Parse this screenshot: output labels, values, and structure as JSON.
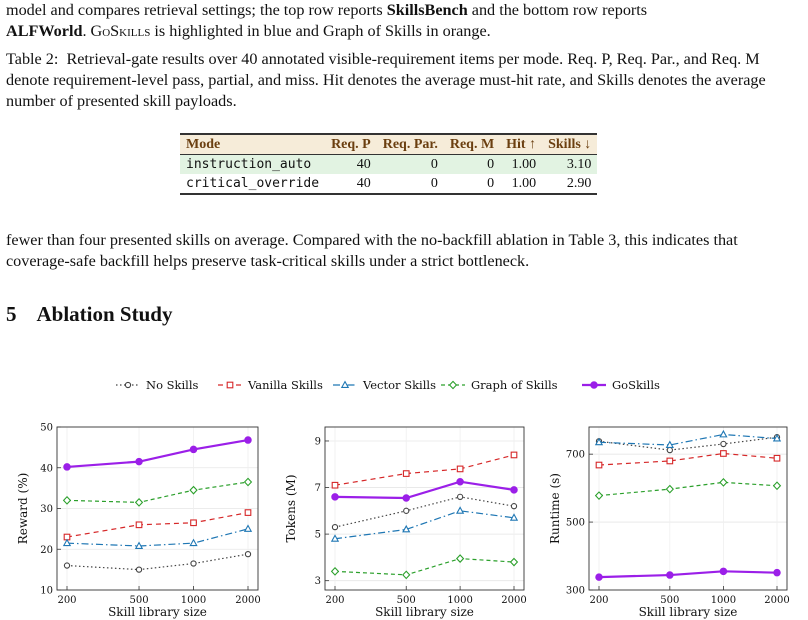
{
  "top_paragraph": {
    "line1": "model and compares retrieval settings; the top row reports ",
    "line1_bold": "SkillsBench",
    "line1_end": " and the bottom row reports",
    "line2_bold": "ALFWorld",
    "line2_mid": ". ",
    "line2_sc": "GoSkills",
    "line2_end": " is highlighted in blue and Graph of Skills in orange."
  },
  "caption": {
    "label": "Table 2:",
    "text": "Retrieval-gate results over 40 annotated visible-requirement items per mode. Req. P, Req. Par., and Req. M denote requirement-level pass, partial, and miss. Hit denotes the average must-hit rate, and Skills denotes the average number of presented skill payloads."
  },
  "table": {
    "headers": [
      "Mode",
      "Req. P",
      "Req. Par.",
      "Req. M",
      "Hit ↑",
      "Skills ↓"
    ],
    "rows": [
      [
        "instruction_auto",
        "40",
        "0",
        "0",
        "1.00",
        "3.10"
      ],
      [
        "critical_override",
        "40",
        "0",
        "0",
        "1.00",
        "2.90"
      ]
    ]
  },
  "body_paragraph": "fewer than four presented skills on average. Compared with the no-backfill ablation in Table 3, this indicates that coverage-safe backfill helps preserve task-critical skills under a strict bottleneck.",
  "section": {
    "number": "5",
    "title": "Ablation Study"
  },
  "colors": {
    "no_skills": "#444444",
    "vanilla": "#d62728",
    "vector": "#1f77b4",
    "graph": "#2ca02c",
    "goskills": "#9b1fe8"
  },
  "chart_data": [
    {
      "type": "line",
      "xlabel": "Skill library size",
      "ylabel": "Reward (%)",
      "x": [
        200,
        500,
        1000,
        2000
      ],
      "ylim": [
        10,
        50
      ],
      "yticks": [
        10,
        20,
        30,
        40,
        50
      ],
      "legend": "top-center",
      "series": [
        {
          "name": "No Skills",
          "values": [
            16.0,
            15.0,
            16.5,
            18.8
          ]
        },
        {
          "name": "Vanilla Skills",
          "values": [
            23.0,
            26.0,
            26.5,
            29.0
          ]
        },
        {
          "name": "Vector Skills",
          "values": [
            21.5,
            20.8,
            21.5,
            25.0
          ]
        },
        {
          "name": "Graph of Skills",
          "values": [
            32.0,
            31.5,
            34.5,
            36.5
          ]
        },
        {
          "name": "GoSkills",
          "values": [
            40.2,
            41.5,
            44.5,
            46.8
          ]
        }
      ]
    },
    {
      "type": "line",
      "xlabel": "Skill library size",
      "ylabel": "Tokens (M)",
      "x": [
        200,
        500,
        1000,
        2000
      ],
      "ylim": [
        2.6,
        9.6
      ],
      "yticks": [
        3,
        5,
        7,
        9
      ],
      "series": [
        {
          "name": "No Skills",
          "values": [
            5.3,
            6.0,
            6.6,
            6.2
          ]
        },
        {
          "name": "Vanilla Skills",
          "values": [
            7.1,
            7.6,
            7.8,
            8.4
          ]
        },
        {
          "name": "Vector Skills",
          "values": [
            4.8,
            5.2,
            6.0,
            5.7
          ]
        },
        {
          "name": "Graph of Skills",
          "values": [
            3.4,
            3.25,
            3.95,
            3.8
          ]
        },
        {
          "name": "GoSkills",
          "values": [
            6.6,
            6.55,
            7.25,
            6.9
          ]
        }
      ]
    },
    {
      "type": "line",
      "xlabel": "Skill library size",
      "ylabel": "Runtime (s)",
      "x": [
        200,
        500,
        1000,
        2000
      ],
      "ylim": [
        300,
        780
      ],
      "yticks": [
        300,
        500,
        700
      ],
      "series": [
        {
          "name": "No Skills",
          "values": [
            738,
            712,
            730,
            750
          ]
        },
        {
          "name": "Vanilla Skills",
          "values": [
            668,
            680,
            702,
            688
          ]
        },
        {
          "name": "Vector Skills",
          "values": [
            735,
            727,
            758,
            746
          ]
        },
        {
          "name": "Graph of Skills",
          "values": [
            578,
            597,
            617,
            607
          ]
        },
        {
          "name": "GoSkills",
          "values": [
            338,
            344,
            355,
            351
          ]
        }
      ]
    }
  ]
}
